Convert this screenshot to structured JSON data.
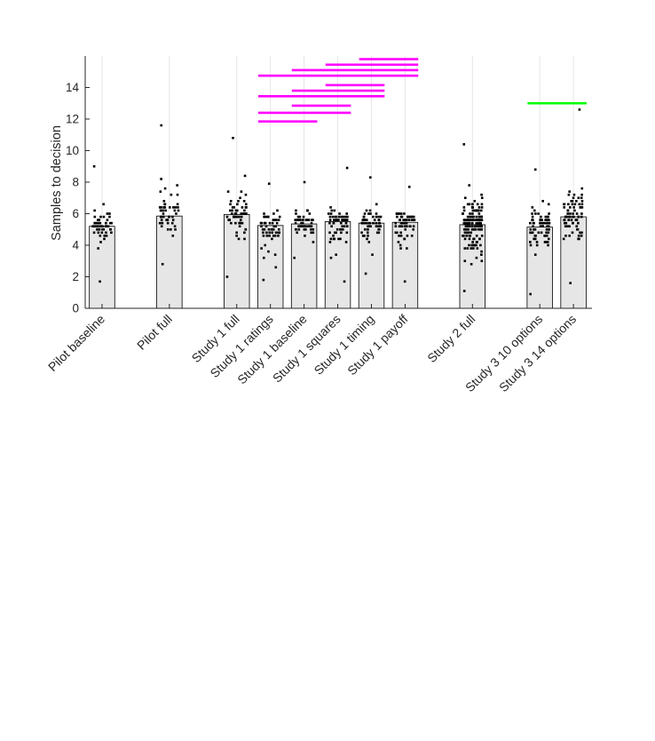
{
  "chart_data": {
    "type": "bar",
    "title": "",
    "xlabel": "",
    "ylabel": "Samples to decision",
    "ylim": [
      0,
      16
    ],
    "yticks": [
      0,
      2,
      4,
      6,
      8,
      10,
      12,
      14
    ],
    "grid": "vertical lines at categories",
    "categories": [
      "Pilot baseline",
      "Pilot full",
      "Study 1 full",
      "Study 1 ratings",
      "Study 1 baseline",
      "Study 1 squares",
      "Study 1 timing",
      "Study 1 payoff",
      "Study 2 full",
      "Study 3 10 options",
      "Study 3 14 options"
    ],
    "category_positions": [
      1,
      3,
      5,
      6,
      7,
      8,
      9,
      10,
      12,
      14,
      15
    ],
    "xlim": [
      0.5,
      15.55
    ],
    "values": [
      5.2,
      5.85,
      5.95,
      5.25,
      5.35,
      5.5,
      5.4,
      5.45,
      5.3,
      5.15,
      5.8
    ],
    "bar_color": "#e6e6e6",
    "point_color": "#000000",
    "points": [
      {
        "min": 1.7,
        "max": 9.0,
        "n": 55
      },
      {
        "min": 2.8,
        "max": 11.6,
        "n": 50
      },
      {
        "min": 2.0,
        "max": 10.8,
        "n": 60
      },
      {
        "min": 1.8,
        "max": 7.9,
        "n": 60
      },
      {
        "min": 3.2,
        "max": 8.0,
        "n": 60
      },
      {
        "min": 1.7,
        "max": 8.9,
        "n": 60
      },
      {
        "min": 2.2,
        "max": 8.3,
        "n": 60
      },
      {
        "min": 1.7,
        "max": 7.7,
        "n": 60
      },
      {
        "min": 1.1,
        "max": 10.4,
        "n": 160
      },
      {
        "min": 0.9,
        "max": 8.8,
        "n": 80
      },
      {
        "min": 1.6,
        "max": 12.6,
        "n": 75
      }
    ],
    "significance_lines": [
      {
        "from": "Study 1 ratings",
        "to": "Study 1 baseline",
        "y": 11.85,
        "color": "#ff00ff"
      },
      {
        "from": "Study 1 ratings",
        "to": "Study 1 squares",
        "y": 12.4,
        "color": "#ff00ff"
      },
      {
        "from": "Study 1 baseline",
        "to": "Study 1 squares",
        "y": 12.85,
        "color": "#ff00ff"
      },
      {
        "from": "Study 1 ratings",
        "to": "Study 1 timing",
        "y": 13.45,
        "color": "#ff00ff"
      },
      {
        "from": "Study 1 baseline",
        "to": "Study 1 timing",
        "y": 13.8,
        "color": "#ff00ff"
      },
      {
        "from": "Study 1 squares",
        "to": "Study 1 timing",
        "y": 14.15,
        "color": "#ff00ff"
      },
      {
        "from": "Study 1 ratings",
        "to": "Study 1 payoff",
        "y": 14.75,
        "color": "#ff00ff"
      },
      {
        "from": "Study 1 baseline",
        "to": "Study 1 payoff",
        "y": 15.1,
        "color": "#ff00ff"
      },
      {
        "from": "Study 1 squares",
        "to": "Study 1 payoff",
        "y": 15.45,
        "color": "#ff00ff"
      },
      {
        "from": "Study 1 timing",
        "to": "Study 1 payoff",
        "y": 15.8,
        "color": "#ff00ff"
      },
      {
        "from": "Study 3 10 options",
        "to": "Study 3 14 options",
        "y": 13.0,
        "color": "#00ff00"
      }
    ]
  }
}
